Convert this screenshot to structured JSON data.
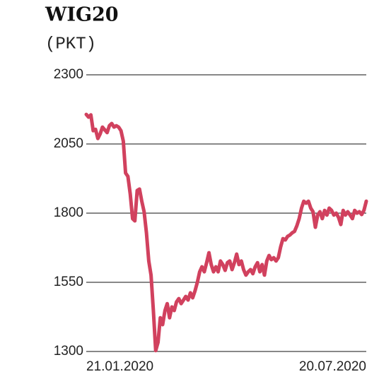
{
  "chart_data": {
    "type": "line",
    "title": "WIG20",
    "subtitle": "(PKT)",
    "categories": [
      "21.01.2020",
      null,
      null,
      null,
      null,
      null,
      null,
      null,
      null,
      null,
      null,
      null,
      null,
      null,
      null,
      null,
      null,
      null,
      null,
      null,
      null,
      null,
      null,
      null,
      null,
      null,
      null,
      null,
      null,
      null,
      null,
      null,
      null,
      null,
      null,
      null,
      null,
      null,
      null,
      null,
      null,
      null,
      null,
      null,
      null,
      null,
      null,
      null,
      null,
      null,
      null,
      null,
      null,
      null,
      null,
      null,
      null,
      null,
      null,
      null,
      null,
      null,
      null,
      null,
      null,
      null,
      null,
      null,
      null,
      null,
      null,
      null,
      null,
      null,
      null,
      null,
      null,
      null,
      null,
      null,
      null,
      null,
      null,
      null,
      null,
      null,
      null,
      null,
      null,
      null,
      null,
      null,
      null,
      null,
      null,
      null,
      null,
      null,
      null,
      null,
      null,
      null,
      null,
      null,
      null,
      null,
      null,
      null,
      null,
      null,
      null,
      null,
      null,
      null,
      null,
      null,
      null,
      null,
      null,
      null,
      null,
      "20.07.2020"
    ],
    "values": [
      2157,
      2147,
      2155,
      2098,
      2103,
      2070,
      2086,
      2111,
      2101,
      2091,
      2116,
      2124,
      2111,
      2116,
      2111,
      2098,
      2060,
      1945,
      1933,
      1869,
      1780,
      1772,
      1882,
      1887,
      1843,
      1805,
      1729,
      1627,
      1576,
      1448,
      1303,
      1333,
      1422,
      1397,
      1448,
      1473,
      1422,
      1461,
      1448,
      1479,
      1491,
      1473,
      1486,
      1499,
      1486,
      1512,
      1494,
      1519,
      1550,
      1588,
      1606,
      1588,
      1621,
      1657,
      1614,
      1588,
      1606,
      1588,
      1627,
      1614,
      1593,
      1621,
      1627,
      1596,
      1621,
      1652,
      1614,
      1627,
      1596,
      1576,
      1588,
      1596,
      1581,
      1606,
      1621,
      1588,
      1614,
      1576,
      1627,
      1647,
      1632,
      1639,
      1627,
      1639,
      1678,
      1708,
      1703,
      1716,
      1721,
      1729,
      1734,
      1754,
      1780,
      1818,
      1843,
      1836,
      1843,
      1818,
      1805,
      1749,
      1793,
      1805,
      1780,
      1810,
      1793,
      1818,
      1810,
      1793,
      1800,
      1785,
      1759,
      1810,
      1793,
      1805,
      1793,
      1780,
      1810,
      1800,
      1805,
      1795,
      1810,
      1843
    ],
    "color": "#d1415e",
    "ylim": [
      1300,
      2300
    ],
    "yticks": [
      1300,
      1550,
      1800,
      2050,
      2300
    ],
    "grid": true
  }
}
